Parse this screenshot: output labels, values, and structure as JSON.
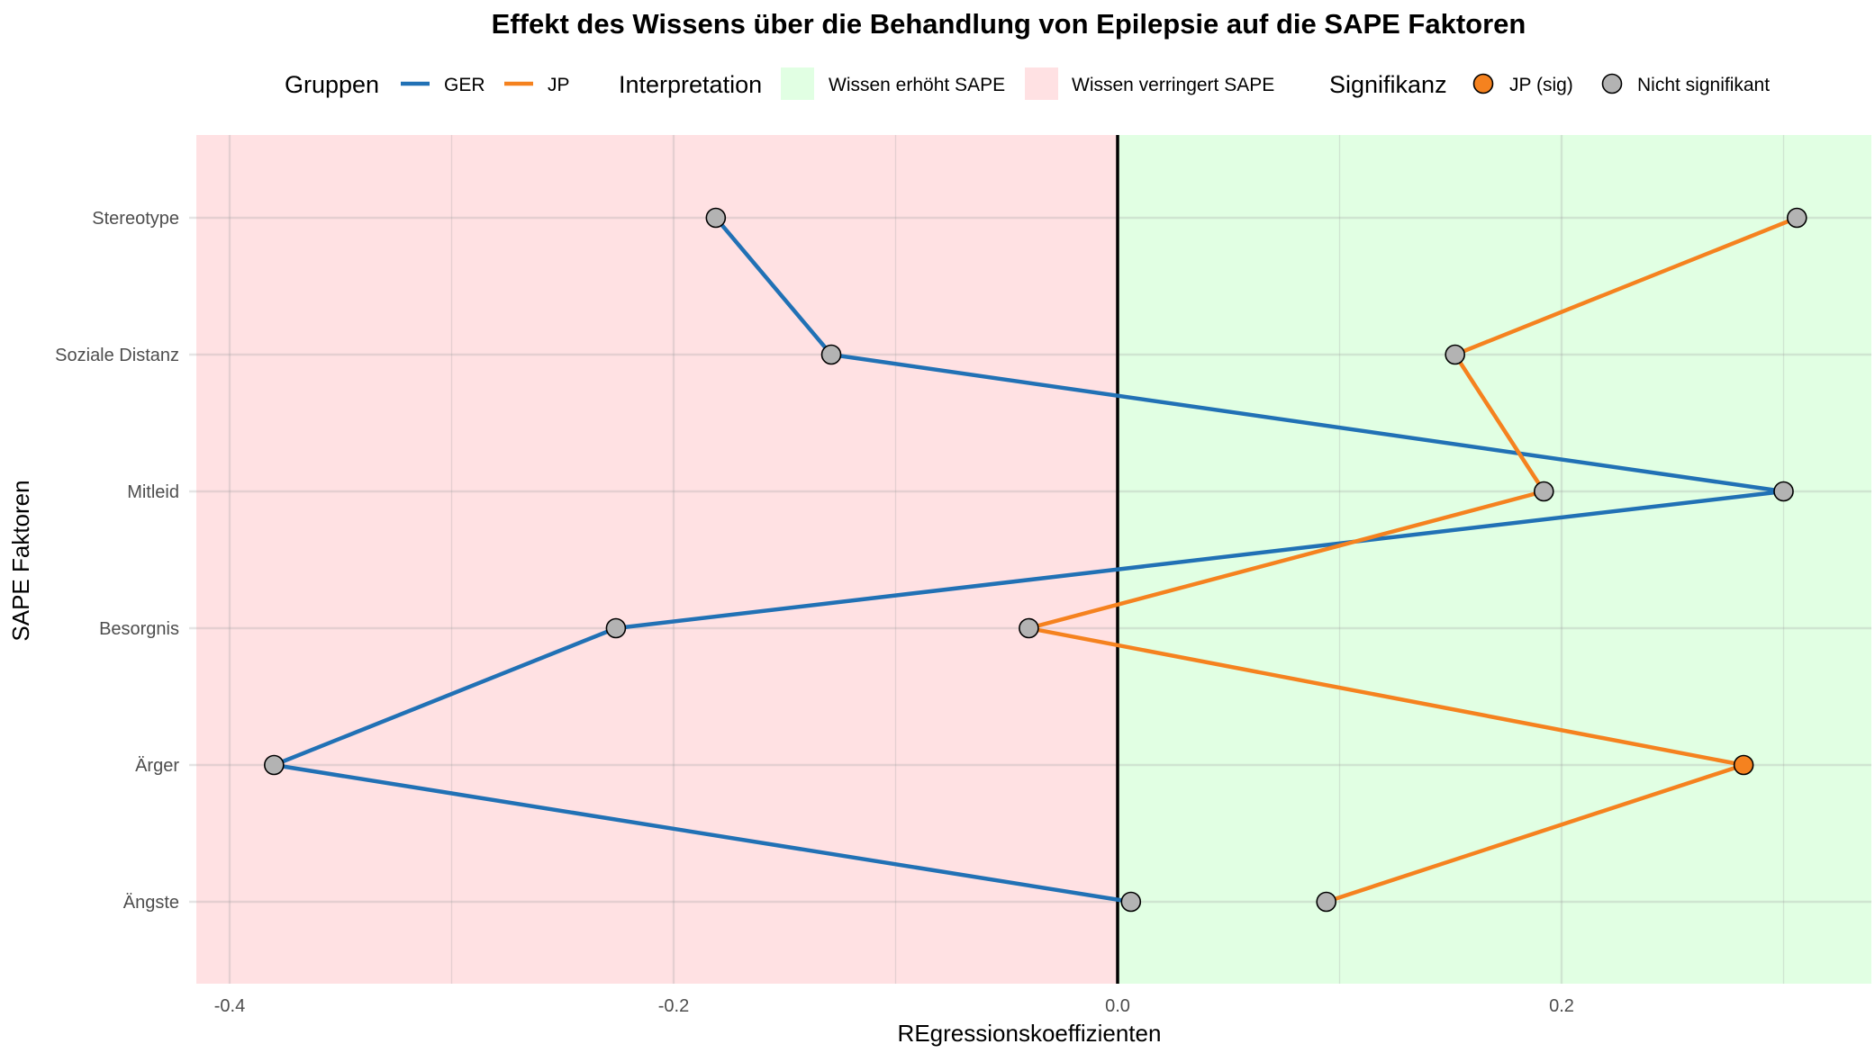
{
  "chart_data": {
    "type": "line",
    "title": "Effekt des Wissens über die Behandlung von Epilepsie auf die SAPE Faktoren",
    "xlabel": "REgressionskoeffizienten",
    "ylabel": "SAPE Faktoren",
    "xlim": [
      -0.415,
      0.34
    ],
    "x_ticks": [
      -0.4,
      -0.2,
      0.0,
      0.2
    ],
    "x_tick_labels": [
      "-0.4",
      "-0.2",
      "0.0",
      "0.2"
    ],
    "categories": [
      "Ängste",
      "Ärger",
      "Besorgnis",
      "Mitleid",
      "Soziale Distanz",
      "Stereotype"
    ],
    "series": [
      {
        "name": "GER",
        "color": "#2171b5",
        "values": [
          0.006,
          -0.38,
          -0.226,
          0.3,
          -0.129,
          -0.181
        ],
        "significant": [
          false,
          false,
          false,
          false,
          false,
          false
        ]
      },
      {
        "name": "JP",
        "color": "#f5821f",
        "values": [
          0.094,
          0.282,
          -0.04,
          0.192,
          0.152,
          0.306
        ],
        "significant": [
          false,
          true,
          false,
          false,
          false,
          false
        ]
      }
    ],
    "regions": [
      {
        "label": "Wissen verringert SAPE",
        "from": -0.415,
        "to": 0.0,
        "color": "#ffe1e3"
      },
      {
        "label": "Wissen erhöht SAPE",
        "from": 0.0,
        "to": 0.34,
        "color": "#e1ffe3"
      }
    ],
    "reference_line": 0.0,
    "grid": true,
    "legend_position": "top",
    "legend": {
      "groups_title": "Gruppen",
      "groups": [
        "GER",
        "JP"
      ],
      "interpretation_title": "Interpretation",
      "interpretation": [
        "Wissen erhöht SAPE",
        "Wissen verringert SAPE"
      ],
      "significance_title": "Signifikanz",
      "significance": [
        {
          "label": "JP (sig)",
          "color": "#f5821f"
        },
        {
          "label": "Nicht signifikant",
          "color": "#b3b3b3"
        }
      ]
    }
  }
}
